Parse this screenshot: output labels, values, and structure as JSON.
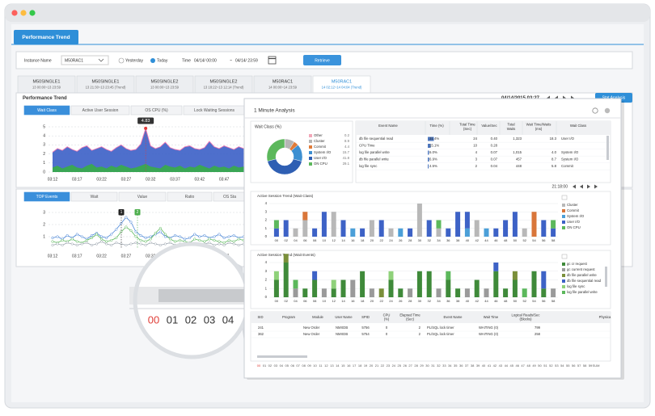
{
  "window": {
    "tab": "Performance Trend"
  },
  "filter": {
    "instance_label": "Instance Name",
    "instance": "M50RAC1",
    "yesterday": "Yesterday",
    "today": "Today",
    "time_label": "Time",
    "from": "04/14/ 00:00",
    "sep": "~",
    "to": "04/14/ 23:59",
    "retrieve": "Retrieve"
  },
  "instance_tabs": [
    {
      "name": "M50SINGLE1",
      "range": "13 00:00~13 23:59"
    },
    {
      "name": "M50SINGLE1",
      "range": "13 21:30~13 23:45 (Trend)"
    },
    {
      "name": "M50SINGLE2",
      "range": "13 00:00~13 23:59"
    },
    {
      "name": "M50SINGLE2",
      "range": "13 18:22~13 12:14 (Trend)"
    },
    {
      "name": "M50RAC1",
      "range": "14 00:00~14 23:59"
    },
    {
      "name": "M50RAC1",
      "range": "14 02:12~14 04:04 (Trend)"
    }
  ],
  "trend_panel": {
    "title": "Performance Trend",
    "timestamp": "04/14/2015 03:27",
    "stat_button": "Stat Analysis",
    "tabs": [
      "Wait Class",
      "Active User Session",
      "OS CPU (%)",
      "Lock Waiting Sessions"
    ],
    "chart": {
      "type": "area",
      "x": [
        "03:12",
        null,
        null,
        null,
        null,
        "03:17",
        null,
        null,
        null,
        null,
        "03:22",
        null,
        null,
        null,
        null,
        "03:27",
        null,
        null,
        null,
        null,
        "03:32",
        null,
        null,
        null,
        null,
        "03:37",
        null,
        null,
        null,
        null,
        "03:42",
        null,
        null,
        null,
        null,
        "03:47",
        null,
        null,
        null,
        null
      ],
      "ylim": [
        0,
        5
      ],
      "yticks": [
        0,
        1,
        2,
        3,
        4,
        5
      ],
      "series": [
        {
          "color": "#3b5fc6",
          "outline": "#f27bb5",
          "values": [
            2.2,
            2.6,
            2.4,
            2.8,
            2.5,
            2.3,
            2.7,
            2.9,
            2.4,
            2.6,
            2.8,
            2.5,
            2.3,
            2.7,
            3.0,
            2.6,
            2.4,
            2.5,
            3.1,
            4.83,
            2.9,
            2.6,
            2.8,
            3.3,
            2.7,
            2.5,
            2.4,
            2.8,
            2.9,
            2.6,
            2.5,
            2.7,
            3.4,
            2.8,
            2.6,
            2.9,
            2.7,
            2.5,
            2.8,
            2.6
          ]
        },
        {
          "color": "#3aa655",
          "values": [
            0.5,
            0.7,
            0.4,
            0.6,
            0.8,
            0.5,
            0.4,
            0.7,
            0.9,
            0.5,
            0.6,
            0.4,
            0.7,
            0.5,
            0.8,
            0.6,
            0.4,
            0.5,
            0.7,
            0.9,
            0.6,
            0.5,
            0.4,
            0.8,
            0.6,
            0.5,
            0.7,
            0.4,
            0.6,
            0.5,
            0.8,
            0.6,
            0.4,
            0.7,
            0.5,
            0.6,
            0.4,
            0.7,
            0.5,
            0.6
          ]
        }
      ]
    }
  },
  "events_panel": {
    "tabs": [
      "TOP Events",
      "Wait",
      "Value",
      "Ratio",
      "OS Sta"
    ],
    "flags": [
      "1",
      "2"
    ],
    "chart": {
      "type": "line",
      "x": [
        "03:12",
        null,
        null,
        null,
        null,
        "03:17",
        null,
        null,
        null,
        null,
        "03:22",
        null,
        null,
        null,
        null,
        "03:27",
        null,
        null,
        null,
        null,
        "03:32",
        null,
        null,
        null,
        null,
        "03:37",
        null,
        null,
        null,
        null,
        "03:42",
        null,
        null,
        null,
        null,
        "03:47",
        null,
        null,
        null,
        null
      ],
      "ylim": [
        0,
        3
      ],
      "yticks": [
        1,
        2,
        3
      ],
      "series": [
        {
          "color": "#4a86d8",
          "values": [
            0.9,
            1.0,
            0.8,
            1.1,
            0.9,
            1.2,
            1.0,
            0.8,
            1.1,
            1.3,
            1.0,
            0.9,
            1.2,
            1.6,
            2.1,
            2.6,
            2.2,
            1.4,
            1.1,
            0.9,
            1.0,
            1.2,
            1.4,
            1.0,
            0.9,
            1.1,
            1.0,
            0.8,
            0.9,
            1.2,
            1.0,
            1.1,
            0.9,
            1.0,
            1.2,
            0.9,
            1.0,
            1.1,
            0.9,
            1.0
          ]
        },
        {
          "color": "#5cb85c",
          "values": [
            0.6,
            0.5,
            0.7,
            0.6,
            0.8,
            0.6,
            0.5,
            0.7,
            0.9,
            1.2,
            0.8,
            0.6,
            0.7,
            0.9,
            1.4,
            1.8,
            1.5,
            1.0,
            0.7,
            0.6,
            0.8,
            1.3,
            1.7,
            1.2,
            0.8,
            0.6,
            0.7,
            0.6,
            0.5,
            0.8,
            0.7,
            0.6,
            0.8,
            0.7,
            0.6,
            0.5,
            0.7,
            0.6,
            0.8,
            0.7
          ]
        },
        {
          "color": "#9aa3ad",
          "values": [
            0.3,
            0.4,
            0.3,
            0.5,
            0.4,
            0.3,
            0.4,
            0.5,
            0.3,
            0.4,
            0.6,
            0.4,
            0.3,
            0.5,
            0.4,
            0.3,
            0.4,
            0.5,
            0.4,
            0.3,
            0.5,
            0.4,
            0.3,
            0.4,
            0.5,
            0.3,
            0.4,
            0.3,
            0.5,
            0.4,
            0.3,
            0.4,
            0.5,
            0.3,
            0.4,
            0.3,
            0.5,
            0.4,
            0.3,
            0.4
          ]
        }
      ]
    }
  },
  "dialog": {
    "title": "1 Minute Analysis",
    "wait_class": {
      "title": "Wait Class (%)",
      "items": [
        {
          "name": "Other",
          "color": "#f2a7b8",
          "value": 0.2
        },
        {
          "name": "Cluster",
          "color": "#b5b5b5",
          "value": 8.9
        },
        {
          "name": "Commit",
          "color": "#e07b39",
          "value": 4.4
        },
        {
          "name": "System I/O",
          "color": "#3d8fd1",
          "value": 15.7
        },
        {
          "name": "User I/O",
          "color": "#2f5fb3",
          "value": 41.8
        },
        {
          "name": "ON CPU",
          "color": "#5cb85c",
          "value": 29.1
        }
      ]
    },
    "events": {
      "headers": [
        [
          "Event Name"
        ],
        [
          "Time (%)"
        ],
        [
          "Total Time",
          "(Sec)"
        ],
        [
          "Value/Sec"
        ],
        [
          "Total",
          "Waits"
        ],
        [
          "Wait Time/Waits",
          "(ms)"
        ],
        [
          "Wait Class"
        ]
      ],
      "time_pct": [
        31.4,
        15.1,
        6.0,
        6.9,
        4.5
      ],
      "rows": [
        [
          "db file sequential read",
          "31.4%",
          "24",
          "0.40",
          "1,323",
          "18.3",
          "User I/O"
        ],
        [
          "CPU Time",
          "15.1%",
          "10",
          "0.28",
          null,
          null,
          null
        ],
        [
          "log file parallel write",
          "6.0%",
          "4",
          "0.07",
          "1,015",
          "4.0",
          "System I/O"
        ],
        [
          "db file parallel write",
          "6.9%",
          "3",
          "0.07",
          "457",
          "8.7",
          "System I/O"
        ],
        [
          "log file sync",
          "4.5%",
          "2",
          "0.04",
          "448",
          "5.8",
          "Commit"
        ]
      ]
    },
    "time": "21:18:00",
    "wait_class_trend": {
      "type": "bar",
      "title": "Active Session Trend (Wait Class)",
      "ylim": [
        0,
        4
      ],
      "yticks": [
        0,
        1,
        2,
        3,
        4
      ],
      "series": [
        {
          "name": "Cluster",
          "color": "#b8b8b8",
          "values": [
            0,
            0,
            1,
            2,
            0,
            0,
            3,
            0,
            0,
            0,
            2,
            0,
            1,
            0,
            0,
            4,
            0,
            1,
            0,
            0,
            0,
            2,
            0,
            0,
            0,
            0,
            1,
            0,
            0,
            0
          ]
        },
        {
          "name": "Commit",
          "color": "#d9763a",
          "values": [
            0,
            0,
            0,
            1,
            0,
            0,
            0,
            0,
            0,
            0,
            0,
            0,
            0,
            0,
            0,
            0,
            0,
            0,
            0,
            0,
            0,
            0,
            0,
            0,
            0,
            0,
            0,
            3,
            0,
            0
          ]
        },
        {
          "name": "System I/O",
          "color": "#4b9fd8",
          "values": [
            0,
            0,
            0,
            0,
            0,
            0,
            0,
            0,
            1,
            0,
            0,
            0,
            0,
            1,
            0,
            0,
            0,
            0,
            0,
            0,
            1,
            0,
            1,
            0,
            0,
            0,
            0,
            0,
            0,
            0
          ]
        },
        {
          "name": "User I/O",
          "color": "#3d62c6",
          "values": [
            1,
            2,
            0,
            0,
            1,
            3,
            0,
            2,
            0,
            1,
            0,
            2,
            0,
            0,
            1,
            0,
            2,
            0,
            1,
            3,
            2,
            0,
            0,
            1,
            2,
            3,
            0,
            0,
            2,
            1
          ]
        },
        {
          "name": "ON CPU",
          "color": "#5cb85c",
          "values": [
            1,
            0,
            0,
            0,
            0,
            0,
            0,
            0,
            0,
            0,
            0,
            0,
            0,
            0,
            0,
            0,
            0,
            1,
            0,
            0,
            0,
            0,
            0,
            0,
            0,
            0,
            0,
            0,
            0,
            1
          ]
        }
      ]
    },
    "wait_event_trend": {
      "type": "bar",
      "title": "Active Session Trend (Wait Events)",
      "ylim": [
        0,
        4
      ],
      "yticks": [
        0,
        1,
        2,
        3,
        4
      ],
      "series": [
        {
          "name": "gc cr request",
          "color": "#3f8a3a",
          "values": [
            2,
            4,
            0,
            1,
            2,
            0,
            1,
            2,
            0,
            3,
            0,
            0,
            2,
            1,
            0,
            3,
            3,
            0,
            2,
            1,
            0,
            2,
            0,
            3,
            1,
            2,
            0,
            3,
            1,
            0
          ]
        },
        {
          "name": "gc current request",
          "color": "#9a9a9a",
          "values": [
            0,
            0,
            1,
            0,
            0,
            1,
            0,
            0,
            2,
            0,
            1,
            0,
            0,
            0,
            1,
            0,
            0,
            1,
            0,
            0,
            1,
            0,
            1,
            0,
            0,
            0,
            0,
            0,
            0,
            1
          ]
        },
        {
          "name": "db file parallel write",
          "color": "#7a8f3a",
          "values": [
            0,
            1,
            0,
            0,
            0,
            0,
            0,
            0,
            0,
            0,
            0,
            1,
            0,
            0,
            0,
            0,
            0,
            0,
            0,
            0,
            0,
            0,
            0,
            0,
            0,
            1,
            0,
            0,
            0,
            0
          ]
        },
        {
          "name": "db file sequential read",
          "color": "#3d62c6",
          "values": [
            0,
            0,
            0,
            0,
            1,
            0,
            0,
            0,
            0,
            0,
            0,
            0,
            0,
            0,
            0,
            0,
            0,
            0,
            0,
            0,
            0,
            0,
            0,
            1,
            0,
            0,
            0,
            0,
            2,
            0
          ]
        },
        {
          "name": "log file sync",
          "color": "#8fd17a",
          "values": [
            1,
            0,
            0,
            0,
            0,
            0,
            1,
            0,
            0,
            0,
            0,
            0,
            1,
            0,
            0,
            0,
            0,
            0,
            0,
            0,
            0,
            0,
            0,
            0,
            0,
            0,
            0,
            0,
            0,
            0
          ]
        },
        {
          "name": "log file parallel write",
          "color": "#5cb85c",
          "values": [
            0,
            0,
            1,
            0,
            0,
            0,
            0,
            0,
            0,
            0,
            0,
            0,
            0,
            0,
            0,
            0,
            0,
            0,
            1,
            0,
            0,
            0,
            0,
            0,
            0,
            0,
            1,
            0,
            0,
            0
          ]
        }
      ]
    },
    "sessions": {
      "headers": [
        [
          "SID"
        ],
        [
          "Program"
        ],
        [
          "Module"
        ],
        [
          "User Name"
        ],
        [
          "SPID"
        ],
        [
          "CPU",
          "(%)"
        ],
        [
          "Elapsed Time",
          "(Sec)"
        ],
        [
          "Event Name"
        ],
        [
          "Wait Time"
        ],
        [
          "Logical Reads/Sec",
          "(Blocks)"
        ],
        [
          "Physica"
        ]
      ],
      "rows": [
        [
          "241",
          null,
          "New Order",
          "NMXDB",
          "5756",
          "0",
          "2",
          "PL/SQL lock timer",
          "WAITING (0)",
          "799"
        ],
        [
          "362",
          null,
          "New Order",
          "NMXDB",
          "5754",
          "0",
          "2",
          "PL/SQL lock timer",
          "WAITING (0)",
          "258"
        ]
      ]
    },
    "minutes": [
      "00",
      "01",
      "02",
      "03",
      "04",
      "05",
      "06",
      "07",
      "08",
      "09",
      "10",
      "11",
      "12",
      "13",
      "14",
      "15",
      "16",
      "17",
      "18",
      "19",
      "20",
      "21",
      "22",
      "23",
      "24",
      "25",
      "26",
      "27",
      "28",
      "29",
      "30",
      "31",
      "32",
      "33",
      "34",
      "35",
      "36",
      "37",
      "38",
      "39",
      "40",
      "41",
      "42",
      "43",
      "44",
      "45",
      "46",
      "47",
      "48",
      "49",
      "50",
      "51",
      "52",
      "53",
      "54",
      "55",
      "56",
      "57",
      "58",
      "59",
      "SUM"
    ]
  }
}
